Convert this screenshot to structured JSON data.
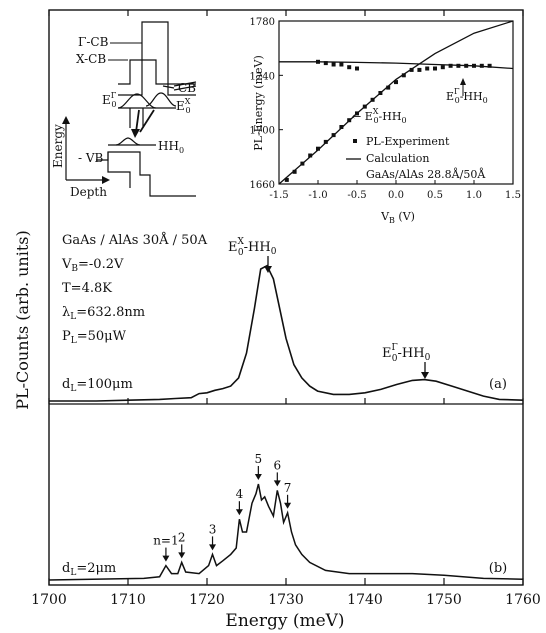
{
  "chart_data": [
    {
      "type": "line",
      "panel": "main",
      "xlabel": "Energy (meV)",
      "ylabel": "PL-Counts (arb. units)",
      "xlim": [
        1700,
        1760
      ],
      "x_ticks": [
        "1700",
        "1710",
        "1720",
        "1730",
        "1740",
        "1750",
        "1760"
      ],
      "grid": false,
      "subpanels": [
        {
          "panel_label": "(a)",
          "thickness_label": "d_L=100μm",
          "conditions": [
            "GaAs / AlAs  30Å / 50A",
            "V_B=-0.2V",
            "T=4.8K",
            "λ_L=632.8nm",
            "P_L=50μW"
          ],
          "peak_labels": [
            {
              "text": "E0X-HH0",
              "x": 1727.5
            },
            {
              "text": "E0Γ-HH0",
              "x": 1747.5
            }
          ],
          "series": [
            {
              "x": [
                1700,
                1706,
                1710,
                1714,
                1716,
                1718,
                1719,
                1720,
                1721,
                1722,
                1723,
                1724,
                1725,
                1726,
                1726.8,
                1727.6,
                1728.4,
                1729.2,
                1730,
                1731,
                1732,
                1733,
                1734,
                1736,
                1738,
                1740,
                1742,
                1744,
                1746,
                1747.5,
                1749,
                1751,
                1753,
                1755,
                1757,
                1760
              ],
              "y": [
                0.0,
                0.0,
                0.005,
                0.01,
                0.015,
                0.02,
                0.045,
                0.05,
                0.065,
                0.075,
                0.09,
                0.14,
                0.29,
                0.56,
                0.8,
                0.82,
                0.74,
                0.56,
                0.38,
                0.22,
                0.14,
                0.09,
                0.06,
                0.04,
                0.04,
                0.05,
                0.07,
                0.1,
                0.125,
                0.13,
                0.12,
                0.09,
                0.06,
                0.03,
                0.01,
                0.005
              ]
            }
          ]
        },
        {
          "panel_label": "(b)",
          "thickness_label": "d_L=2μm",
          "peak_labels": [
            {
              "text": "n=1",
              "x": 1714.8
            },
            {
              "text": "2",
              "x": 1716.8
            },
            {
              "text": "3",
              "x": 1720.7
            },
            {
              "text": "4",
              "x": 1724.1
            },
            {
              "text": "5",
              "x": 1726.5
            },
            {
              "text": "6",
              "x": 1728.9
            },
            {
              "text": "7",
              "x": 1730.2
            }
          ],
          "series": [
            {
              "x": [
                1700,
                1712,
                1714,
                1714.8,
                1715.5,
                1716.3,
                1716.8,
                1717.3,
                1719,
                1720.2,
                1720.7,
                1721.2,
                1722,
                1723,
                1723.7,
                1724.1,
                1724.5,
                1725,
                1725.7,
                1726.2,
                1726.5,
                1726.9,
                1727.3,
                1727.8,
                1728.4,
                1728.9,
                1729.3,
                1729.7,
                1730.2,
                1730.7,
                1731.2,
                1732,
                1733,
                1735,
                1738,
                1742,
                1746,
                1750,
                1755,
                1760
              ],
              "y": [
                0.0,
                0.01,
                0.02,
                0.09,
                0.04,
                0.04,
                0.11,
                0.05,
                0.04,
                0.09,
                0.16,
                0.09,
                0.12,
                0.16,
                0.2,
                0.38,
                0.3,
                0.3,
                0.48,
                0.54,
                0.6,
                0.5,
                0.52,
                0.46,
                0.4,
                0.56,
                0.48,
                0.36,
                0.42,
                0.3,
                0.22,
                0.16,
                0.11,
                0.06,
                0.04,
                0.04,
                0.04,
                0.03,
                0.01,
                0.005
              ]
            }
          ]
        }
      ]
    },
    {
      "type": "line",
      "panel": "inset",
      "xlabel": "V_B (V)",
      "ylabel": "PL-Energy (meV)",
      "xlim": [
        -1.5,
        1.5
      ],
      "ylim": [
        1660,
        1780
      ],
      "x_ticks": [
        "-1.5",
        "-1.0",
        "-0.5",
        "0.0",
        "0.5",
        "1.0",
        "1.5"
      ],
      "y_ticks": [
        "1660",
        "1700",
        "1740",
        "1780"
      ],
      "legend": [
        {
          "marker": "square",
          "text": "PL-Experiment"
        },
        {
          "marker": "line",
          "text": "Calculation"
        },
        {
          "marker": "none",
          "text": "GaAs/AlAs 28.8Å/50Å"
        }
      ],
      "annotations": [
        "E0X-HH0",
        "E0Γ-HH0"
      ],
      "series": [
        {
          "label": "PL-Experiment",
          "kind": "points",
          "x": [
            -1.4,
            -1.3,
            -1.2,
            -1.1,
            -1.0,
            -0.9,
            -0.8,
            -0.7,
            -0.6,
            -0.5,
            -0.4,
            -0.3,
            -0.2,
            -0.1,
            0.0,
            0.1,
            0.2,
            0.3,
            0.4,
            0.5,
            0.6,
            0.7,
            0.8,
            0.9,
            1.0,
            1.1,
            1.2,
            -1.0,
            -0.9,
            -0.8,
            -0.7,
            -0.6,
            -0.5
          ],
          "y": [
            1663,
            1669,
            1675,
            1681,
            1686,
            1691,
            1696,
            1702,
            1707,
            1712,
            1717,
            1722,
            1727,
            1731,
            1735,
            1740,
            1744,
            1744,
            1745,
            1745,
            1746,
            1747,
            1747,
            1747,
            1747,
            1747,
            1747,
            1750,
            1749,
            1748,
            1748,
            1746,
            1745
          ]
        },
        {
          "label": "Calculation X",
          "kind": "line",
          "x": [
            -1.5,
            -1.0,
            -0.5,
            0.0,
            0.5,
            1.0,
            1.5
          ],
          "y": [
            1658,
            1685,
            1712,
            1737,
            1756,
            1771,
            1784
          ]
        },
        {
          "label": "Calculation Γ",
          "kind": "line",
          "x": [
            -1.5,
            -1.0,
            -0.5,
            0.0,
            0.5,
            1.0,
            1.5
          ],
          "y": [
            1750,
            1750,
            1749.5,
            1749,
            1748,
            1747,
            1745
          ]
        }
      ]
    },
    {
      "type": "diagram",
      "panel": "band-diagram-inset",
      "labels": [
        "Γ-CB",
        "X-CB",
        "CB",
        "E0Γ",
        "E0X",
        "HH0",
        "Energy",
        "- VB",
        "Depth"
      ]
    }
  ]
}
